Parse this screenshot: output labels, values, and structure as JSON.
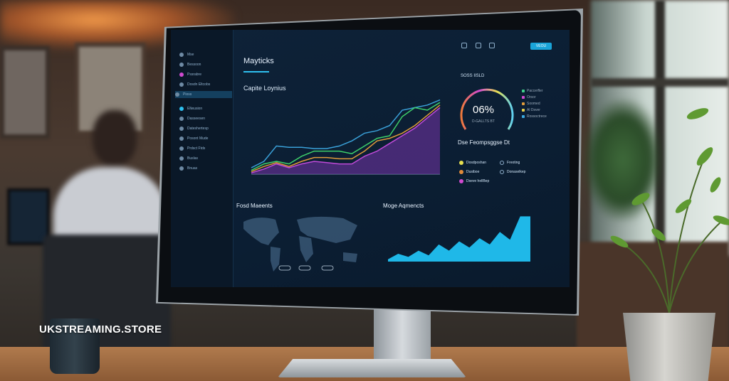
{
  "watermark": "UKSTREAMING.STORE",
  "dashboard": {
    "title": "Mayticks",
    "main_chart_title": "Capite Loynius",
    "gauge": {
      "value_text": "06%",
      "level": 0.72,
      "title": "SOSS IISLD",
      "subtitle": "D-GALLTS BT"
    },
    "gauge_legend": [
      {
        "label": "Paccerfler",
        "color": "#3ed08a"
      },
      {
        "label": "Orsor",
        "color": "#d04ad0"
      },
      {
        "label": "Soomed",
        "color": "#e09a3a"
      },
      {
        "label": "Al Dsver",
        "color": "#e8d04a"
      },
      {
        "label": "Rossoctrece",
        "color": "#3aa8e0"
      }
    ],
    "section_title": "Dse Feompsggse Dt",
    "list_items": [
      {
        "label": "Dosdposhan",
        "color": "#e8e050"
      },
      {
        "label": "Dusiboe",
        "color": "#e08a3a"
      },
      {
        "label": "Dseve hellBep",
        "color": "#d04ad0"
      },
      {
        "label": "Freoting",
        "color": ""
      },
      {
        "label": "Donaselkep",
        "color": ""
      }
    ],
    "map_title": "Fosd Maeents",
    "bar_title": "Moge Aqmencts",
    "top_button": "VEOU",
    "sidebar": [
      "Mse",
      "Bessoon",
      "Pssrabre",
      "Dosdn Eltcobs",
      "Pioss",
      "Ellwusion",
      "Dasseesen",
      "Dateshertesp",
      "Posont Mude",
      "Prdsct Ftds",
      "Buslas",
      "Bnuas"
    ],
    "colors": {
      "accent": "#1aa4d8",
      "background": "#0b1e33"
    },
    "area_series": {
      "blue": [
        5,
        10,
        22,
        21,
        21,
        20,
        20,
        22,
        26,
        32,
        34,
        38,
        50,
        52,
        54,
        58
      ],
      "green": [
        3,
        8,
        10,
        8,
        14,
        18,
        18,
        18,
        16,
        22,
        28,
        30,
        45,
        52,
        50,
        56
      ],
      "orange": [
        2,
        6,
        9,
        6,
        10,
        13,
        13,
        12,
        12,
        18,
        26,
        28,
        32,
        38,
        46,
        54
      ],
      "purple": [
        1,
        4,
        8,
        5,
        8,
        10,
        9,
        8,
        8,
        14,
        18,
        24,
        30,
        36,
        44,
        52
      ]
    },
    "blue_series": [
      3,
      10,
      6,
      14,
      8,
      22,
      14,
      26,
      18,
      30,
      22,
      38,
      28,
      58,
      58
    ]
  }
}
